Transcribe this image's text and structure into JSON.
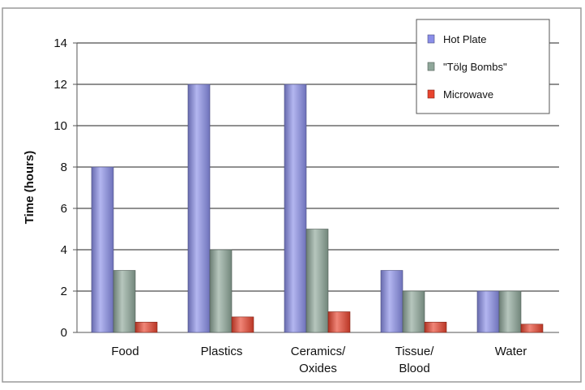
{
  "chart_data": {
    "type": "bar",
    "title": "",
    "xlabel": "",
    "ylabel": "Time (hours)",
    "ylim": [
      0,
      14
    ],
    "yticks": [
      0,
      2,
      4,
      6,
      8,
      10,
      12,
      14
    ],
    "grid": true,
    "legend_position": "top-right",
    "categories": [
      [
        "Food"
      ],
      [
        "Plastics"
      ],
      [
        "Ceramics/",
        "Oxides"
      ],
      [
        "Tissue/",
        "Blood"
      ],
      [
        "Water"
      ]
    ],
    "series": [
      {
        "name": "Hot Plate",
        "color": "#8a8ee8",
        "values": [
          8,
          12,
          12,
          3,
          2
        ]
      },
      {
        "name": "\"Tölg Bombs\"",
        "color": "#8fa79a",
        "values": [
          3,
          4,
          5,
          2,
          2
        ]
      },
      {
        "name": "Microwave",
        "color": "#e8442e",
        "values": [
          0.5,
          0.75,
          1,
          0.5,
          0.4
        ]
      }
    ]
  }
}
